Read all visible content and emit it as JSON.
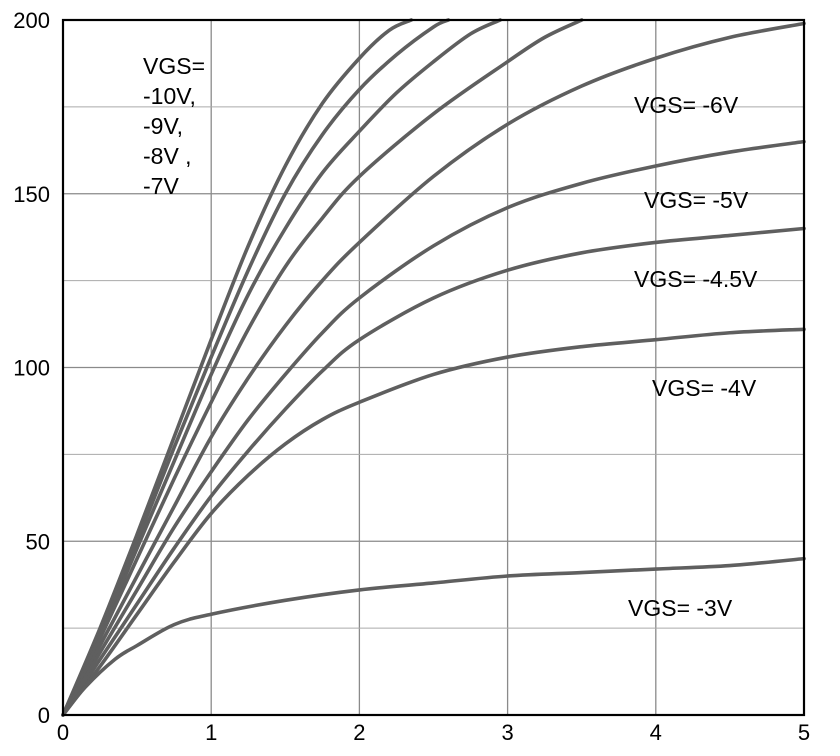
{
  "chart_data": {
    "type": "line",
    "title": "",
    "xlabel": "",
    "ylabel": "",
    "xlim": [
      0,
      5
    ],
    "ylim": [
      0,
      200
    ],
    "grid": true,
    "x_ticks": [
      0,
      1,
      2,
      3,
      4,
      5
    ],
    "y_ticks": [
      0,
      50,
      100,
      150,
      200
    ],
    "x_tick_labels": [
      "0",
      "1",
      "2",
      "3",
      "4",
      "5"
    ],
    "y_tick_labels": [
      "0",
      "50",
      "100",
      "150",
      "200"
    ],
    "series": [
      {
        "name": "VGS=-10V",
        "x": [
          0,
          0.25,
          0.5,
          0.75,
          1.0,
          1.25,
          1.5,
          1.75,
          2.0,
          2.2,
          2.35
        ],
        "y": [
          0,
          25,
          52,
          80,
          108,
          135,
          158,
          176,
          189,
          197,
          200
        ]
      },
      {
        "name": "VGS=-9V",
        "x": [
          0,
          0.25,
          0.5,
          0.75,
          1.0,
          1.25,
          1.5,
          1.75,
          2.0,
          2.25,
          2.5,
          2.6
        ],
        "y": [
          0,
          24,
          50,
          77,
          103,
          128,
          150,
          167,
          180,
          190,
          198,
          200
        ]
      },
      {
        "name": "VGS=-8V",
        "x": [
          0,
          0.25,
          0.5,
          0.75,
          1.0,
          1.25,
          1.5,
          1.75,
          2.0,
          2.25,
          2.5,
          2.75,
          2.95
        ],
        "y": [
          0,
          23,
          48,
          73,
          98,
          121,
          140,
          156,
          168,
          179,
          188,
          196,
          200
        ]
      },
      {
        "name": "VGS=-7V",
        "x": [
          0,
          0.25,
          0.5,
          0.75,
          1.0,
          1.25,
          1.5,
          1.75,
          2.0,
          2.5,
          3.0,
          3.25,
          3.5
        ],
        "y": [
          0,
          22,
          45,
          68,
          90,
          111,
          129,
          143,
          155,
          173,
          188,
          195,
          200
        ]
      },
      {
        "name": "VGS=-6V",
        "x": [
          0,
          0.25,
          0.5,
          0.75,
          1.0,
          1.25,
          1.5,
          1.75,
          2.0,
          2.5,
          3.0,
          3.5,
          4.0,
          4.5,
          5.0
        ],
        "y": [
          0,
          20,
          40,
          60,
          80,
          97,
          112,
          125,
          136,
          155,
          170,
          181,
          189,
          195,
          199
        ]
      },
      {
        "name": "VGS=-5V",
        "x": [
          0,
          0.25,
          0.5,
          0.75,
          1.0,
          1.25,
          1.5,
          1.75,
          2.0,
          2.5,
          3.0,
          3.5,
          4.0,
          4.5,
          5.0
        ],
        "y": [
          0,
          18,
          36,
          54,
          70,
          85,
          98,
          110,
          120,
          135,
          146,
          153,
          158,
          162,
          165
        ]
      },
      {
        "name": "VGS=-4.5V",
        "x": [
          0,
          0.25,
          0.5,
          0.75,
          1.0,
          1.25,
          1.5,
          1.75,
          2.0,
          2.5,
          3.0,
          3.5,
          4.0,
          4.5,
          5.0
        ],
        "y": [
          0,
          16,
          32,
          48,
          63,
          76,
          88,
          99,
          108,
          120,
          128,
          133,
          136,
          138,
          140
        ]
      },
      {
        "name": "VGS=-4V",
        "x": [
          0,
          0.25,
          0.5,
          0.75,
          1.0,
          1.25,
          1.5,
          1.75,
          2.0,
          2.5,
          3.0,
          3.5,
          4.0,
          4.5,
          5.0
        ],
        "y": [
          0,
          14,
          29,
          44,
          58,
          69,
          78,
          85,
          90,
          98,
          103,
          106,
          108,
          110,
          111
        ]
      },
      {
        "name": "VGS=-3V",
        "x": [
          0,
          0.15,
          0.35,
          0.5,
          0.75,
          1.0,
          1.5,
          2.0,
          2.5,
          3.0,
          3.5,
          4.0,
          4.5,
          5.0
        ],
        "y": [
          0,
          8,
          16,
          20,
          26,
          29,
          33,
          36,
          38,
          40,
          41,
          42,
          43,
          45
        ]
      }
    ],
    "annotations": [
      {
        "id": "group",
        "lines": [
          "VGS=",
          "-10V,",
          "-9V,",
          "-8V ,",
          "-7V"
        ]
      },
      {
        "id": "v6",
        "lines": [
          "VGS= -6V"
        ]
      },
      {
        "id": "v5",
        "lines": [
          "VGS= -5V"
        ]
      },
      {
        "id": "v45",
        "lines": [
          "VGS= -4.5V"
        ]
      },
      {
        "id": "v4",
        "lines": [
          "VGS= -4V"
        ]
      },
      {
        "id": "v3",
        "lines": [
          "VGS= -3V"
        ]
      }
    ]
  }
}
